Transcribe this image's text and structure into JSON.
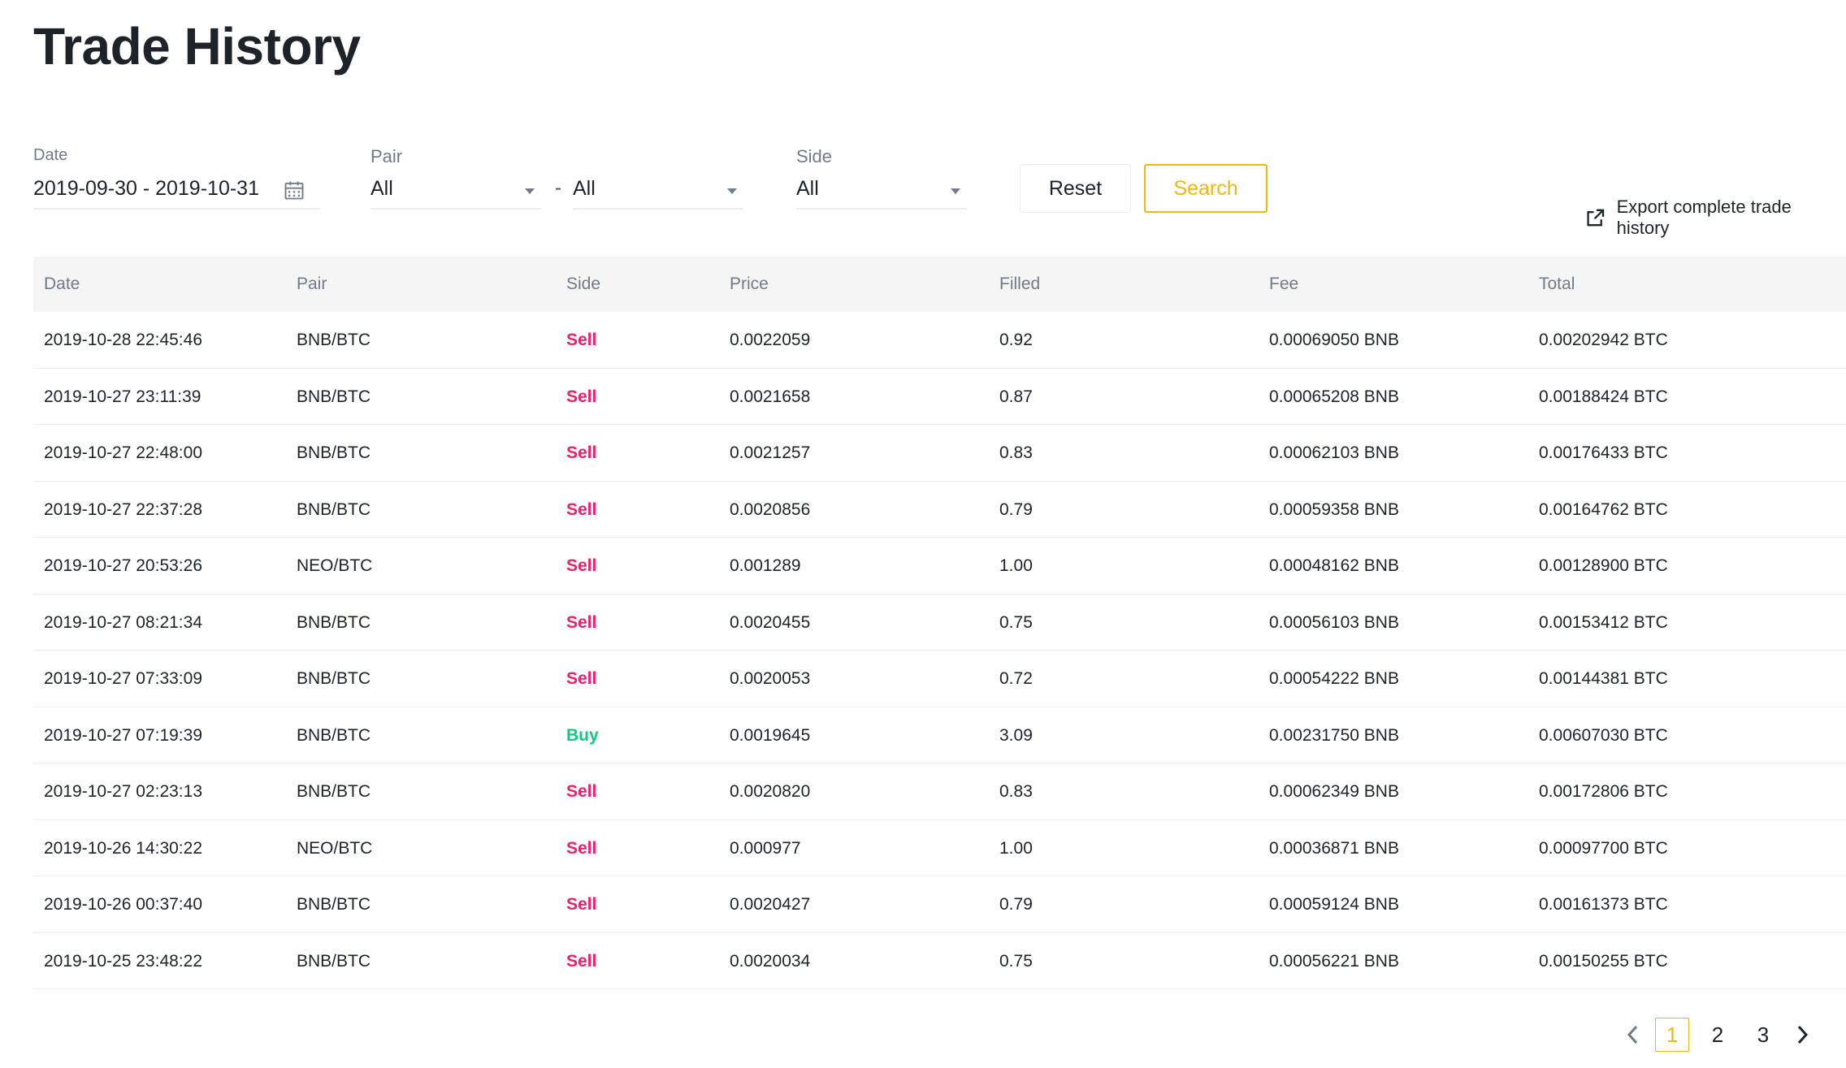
{
  "page": {
    "title": "Trade History"
  },
  "filters": {
    "date": {
      "label": "Date",
      "value": "2019-09-30 - 2019-10-31",
      "icon": "calendar-icon"
    },
    "pair": {
      "label": "Pair",
      "base": "All",
      "separator": "-",
      "quote": "All"
    },
    "side": {
      "label": "Side",
      "value": "All"
    },
    "reset_label": "Reset",
    "search_label": "Search",
    "accent_color": "#f0b90b"
  },
  "export": {
    "label": "Export complete trade history",
    "icon": "export-icon"
  },
  "table": {
    "headers": {
      "date": "Date",
      "pair": "Pair",
      "side": "Side",
      "price": "Price",
      "filled": "Filled",
      "fee": "Fee",
      "total": "Total"
    },
    "rows": [
      {
        "date": "2019-10-28 22:45:46",
        "pair": "BNB/BTC",
        "side": "Sell",
        "price": "0.0022059",
        "filled": "0.92",
        "fee": "0.00069050 BNB",
        "total": "0.00202942 BTC"
      },
      {
        "date": "2019-10-27 23:11:39",
        "pair": "BNB/BTC",
        "side": "Sell",
        "price": "0.0021658",
        "filled": "0.87",
        "fee": "0.00065208 BNB",
        "total": "0.00188424 BTC"
      },
      {
        "date": "2019-10-27 22:48:00",
        "pair": "BNB/BTC",
        "side": "Sell",
        "price": "0.0021257",
        "filled": "0.83",
        "fee": "0.00062103 BNB",
        "total": "0.00176433 BTC"
      },
      {
        "date": "2019-10-27 22:37:28",
        "pair": "BNB/BTC",
        "side": "Sell",
        "price": "0.0020856",
        "filled": "0.79",
        "fee": "0.00059358 BNB",
        "total": "0.00164762 BTC"
      },
      {
        "date": "2019-10-27 20:53:26",
        "pair": "NEO/BTC",
        "side": "Sell",
        "price": "0.001289",
        "filled": "1.00",
        "fee": "0.00048162 BNB",
        "total": "0.00128900 BTC"
      },
      {
        "date": "2019-10-27 08:21:34",
        "pair": "BNB/BTC",
        "side": "Sell",
        "price": "0.0020455",
        "filled": "0.75",
        "fee": "0.00056103 BNB",
        "total": "0.00153412 BTC"
      },
      {
        "date": "2019-10-27 07:33:09",
        "pair": "BNB/BTC",
        "side": "Sell",
        "price": "0.0020053",
        "filled": "0.72",
        "fee": "0.00054222 BNB",
        "total": "0.00144381 BTC"
      },
      {
        "date": "2019-10-27 07:19:39",
        "pair": "BNB/BTC",
        "side": "Buy",
        "price": "0.0019645",
        "filled": "3.09",
        "fee": "0.00231750 BNB",
        "total": "0.00607030 BTC"
      },
      {
        "date": "2019-10-27 02:23:13",
        "pair": "BNB/BTC",
        "side": "Sell",
        "price": "0.0020820",
        "filled": "0.83",
        "fee": "0.00062349 BNB",
        "total": "0.00172806 BTC"
      },
      {
        "date": "2019-10-26 14:30:22",
        "pair": "NEO/BTC",
        "side": "Sell",
        "price": "0.000977",
        "filled": "1.00",
        "fee": "0.00036871 BNB",
        "total": "0.00097700 BTC"
      },
      {
        "date": "2019-10-26 00:37:40",
        "pair": "BNB/BTC",
        "side": "Sell",
        "price": "0.0020427",
        "filled": "0.79",
        "fee": "0.00059124 BNB",
        "total": "0.00161373 BTC"
      },
      {
        "date": "2019-10-25 23:48:22",
        "pair": "BNB/BTC",
        "side": "Sell",
        "price": "0.0020034",
        "filled": "0.75",
        "fee": "0.00056221 BNB",
        "total": "0.00150255 BTC"
      }
    ],
    "side_colors": {
      "Sell": "#f0206c",
      "Buy": "#0ecb81"
    }
  },
  "pagination": {
    "pages": [
      "1",
      "2",
      "3"
    ],
    "current": "1"
  }
}
